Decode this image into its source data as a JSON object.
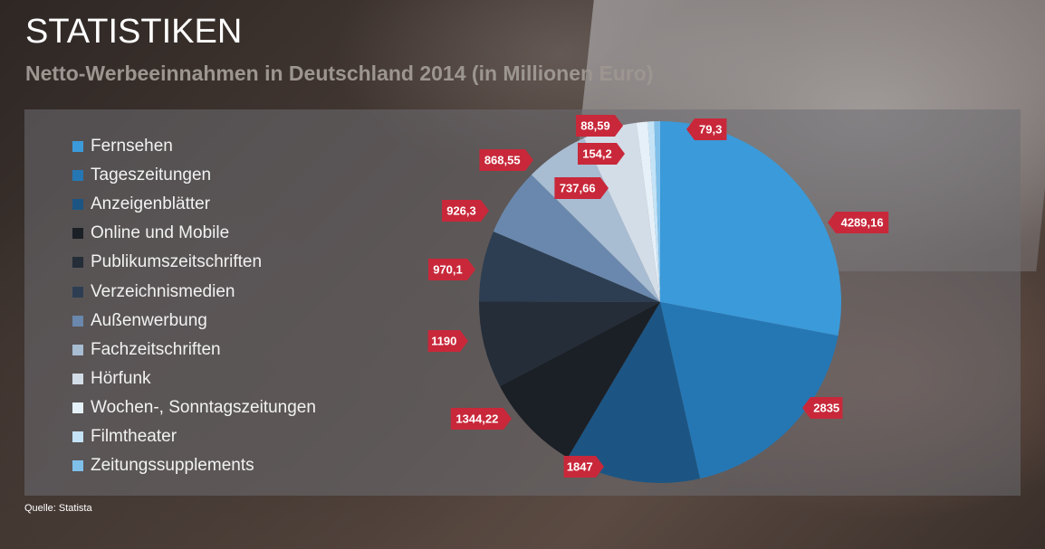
{
  "header": {
    "title": "STATISTIKEN",
    "subtitle": "Netto-Werbeeinnahmen in Deutschland 2014 (in Millionen Euro)"
  },
  "footer": {
    "source": "Quelle: Statista"
  },
  "label_color": "#c8283a",
  "chart_data": {
    "type": "pie",
    "title": "Netto-Werbeeinnahmen in Deutschland 2014 (in Millionen Euro)",
    "legend_position": "left",
    "slices": [
      {
        "label": "Fernsehen",
        "value": 4289.16,
        "display": "4289,16",
        "color": "#3b9ad9"
      },
      {
        "label": "Tageszeitungen",
        "value": 2835,
        "display": "2835",
        "color": "#2577b4"
      },
      {
        "label": "Anzeigenblätter",
        "value": 1847,
        "display": "1847",
        "color": "#1c5583"
      },
      {
        "label": "Online und Mobile",
        "value": 1344.22,
        "display": "1344,22",
        "color": "#1b1f26"
      },
      {
        "label": "Publikumszeitschriften",
        "value": 1190,
        "display": "1190",
        "color": "#242d38"
      },
      {
        "label": "Verzeichnismedien",
        "value": 970.1,
        "display": "970,1",
        "color": "#2d3e52"
      },
      {
        "label": "Außenwerbung",
        "value": 926.3,
        "display": "926,3",
        "color": "#6a88ad"
      },
      {
        "label": "Fachzeitschriften",
        "value": 868.55,
        "display": "868,55",
        "color": "#a8bcd2"
      },
      {
        "label": "Hörfunk",
        "value": 737.66,
        "display": "737,66",
        "color": "#d3dde8"
      },
      {
        "label": "Wochen-, Sonntagszeitungen",
        "value": 154.2,
        "display": "154,2",
        "color": "#e6f0f8"
      },
      {
        "label": "Filmtheater",
        "value": 88.59,
        "display": "88,59",
        "color": "#c4e3f7"
      },
      {
        "label": "Zeitungssupplements",
        "value": 79.3,
        "display": "79,3",
        "color": "#7fc0eb"
      }
    ]
  }
}
